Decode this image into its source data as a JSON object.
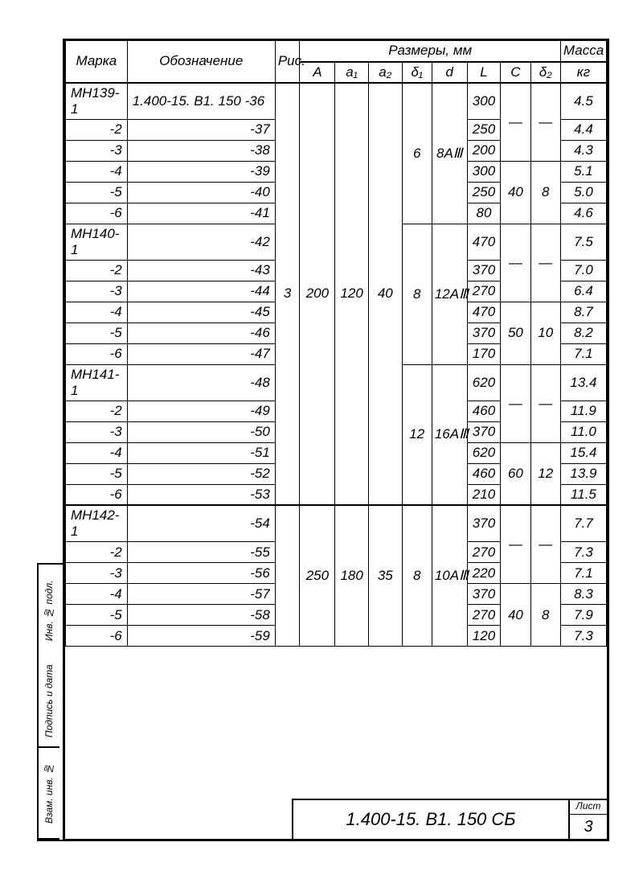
{
  "header": {
    "marka": "Марка",
    "oboz": "Обозначение",
    "ris": "Рис.",
    "razmery": "Размеры, мм",
    "A": "A",
    "a1": "a₁",
    "a2": "a₂",
    "d1": "δ₁",
    "d": "d",
    "L": "L",
    "C": "C",
    "d2": "δ₂",
    "massa1": "Масса",
    "massa2": "кг"
  },
  "groups": [
    {
      "A": "200",
      "a1": "120",
      "a2": "40",
      "ris": "3",
      "subgroups": [
        {
          "d1": "6",
          "d": "8AⅢ",
          "blocks": [
            {
              "C": "—",
              "d2": "—",
              "rows": [
                {
                  "marka": "МН139-1",
                  "oboz": "1.400-15. В1. 150   -36",
                  "L": "300",
                  "mass": "4.5"
                },
                {
                  "marka": "-2",
                  "oboz": "-37",
                  "L": "250",
                  "mass": "4.4"
                },
                {
                  "marka": "-3",
                  "oboz": "-38",
                  "L": "200",
                  "mass": "4.3"
                }
              ]
            },
            {
              "C": "40",
              "d2": "8",
              "rows": [
                {
                  "marka": "-4",
                  "oboz": "-39",
                  "L": "300",
                  "mass": "5.1"
                },
                {
                  "marka": "-5",
                  "oboz": "-40",
                  "L": "250",
                  "mass": "5.0"
                },
                {
                  "marka": "-6",
                  "oboz": "-41",
                  "L": "80",
                  "mass": "4.6"
                }
              ]
            }
          ]
        },
        {
          "d1": "8",
          "d": "12AⅢ",
          "blocks": [
            {
              "C": "—",
              "d2": "—",
              "rows": [
                {
                  "marka": "МН140-1",
                  "oboz": "-42",
                  "L": "470",
                  "mass": "7.5"
                },
                {
                  "marka": "-2",
                  "oboz": "-43",
                  "L": "370",
                  "mass": "7.0"
                },
                {
                  "marka": "-3",
                  "oboz": "-44",
                  "L": "270",
                  "mass": "6.4"
                }
              ]
            },
            {
              "C": "50",
              "d2": "10",
              "rows": [
                {
                  "marka": "-4",
                  "oboz": "-45",
                  "L": "470",
                  "mass": "8.7"
                },
                {
                  "marka": "-5",
                  "oboz": "-46",
                  "L": "370",
                  "mass": "8.2"
                },
                {
                  "marka": "-6",
                  "oboz": "-47",
                  "L": "170",
                  "mass": "7.1"
                }
              ]
            }
          ]
        },
        {
          "d1": "12",
          "d": "16AⅢ",
          "blocks": [
            {
              "C": "—",
              "d2": "—",
              "rows": [
                {
                  "marka": "МН141-1",
                  "oboz": "-48",
                  "L": "620",
                  "mass": "13.4"
                },
                {
                  "marka": "-2",
                  "oboz": "-49",
                  "L": "460",
                  "mass": "11.9"
                },
                {
                  "marka": "-3",
                  "oboz": "-50",
                  "L": "370",
                  "mass": "11.0"
                }
              ]
            },
            {
              "C": "60",
              "d2": "12",
              "rows": [
                {
                  "marka": "-4",
                  "oboz": "-51",
                  "L": "620",
                  "mass": "15.4"
                },
                {
                  "marka": "-5",
                  "oboz": "-52",
                  "L": "460",
                  "mass": "13.9"
                },
                {
                  "marka": "-6",
                  "oboz": "-53",
                  "L": "210",
                  "mass": "11.5"
                }
              ]
            }
          ]
        }
      ]
    },
    {
      "A": "250",
      "a1": "180",
      "a2": "35",
      "subgroups": [
        {
          "d1": "8",
          "d": "10AⅢ",
          "blocks": [
            {
              "C": "—",
              "d2": "—",
              "rows": [
                {
                  "marka": "МН142-1",
                  "oboz": "-54",
                  "L": "370",
                  "mass": "7.7"
                },
                {
                  "marka": "-2",
                  "oboz": "-55",
                  "L": "270",
                  "mass": "7.3"
                },
                {
                  "marka": "-3",
                  "oboz": "-56",
                  "L": "220",
                  "mass": "7.1"
                }
              ]
            },
            {
              "C": "40",
              "d2": "8",
              "rows": [
                {
                  "marka": "-4",
                  "oboz": "-57",
                  "L": "370",
                  "mass": "8.3"
                },
                {
                  "marka": "-5",
                  "oboz": "-58",
                  "L": "270",
                  "mass": "7.9"
                },
                {
                  "marka": "-6",
                  "oboz": "-59",
                  "L": "120",
                  "mass": "7.3"
                }
              ]
            }
          ]
        }
      ]
    }
  ],
  "title": {
    "code": "1.400-15. В1.  150 СБ",
    "sheet_label": "Лист",
    "sheet_num": "3"
  },
  "sidetabs": [
    "Взам. инв. №",
    "Подпись и дата",
    "Инв. № подл."
  ],
  "colors": {
    "ink": "#000000",
    "paper": "#ffffff"
  }
}
